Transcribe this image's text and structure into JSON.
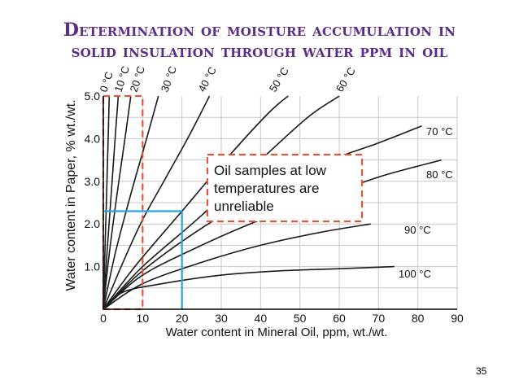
{
  "slide": {
    "title_line_1": "Determination of moisture accumulation in",
    "title_line_2": "solid insulation through water ppm in oil",
    "page_number": "35"
  },
  "colors": {
    "title": "#5b2c8a",
    "curves": "#1a1a1a",
    "reliability_box": "#e0563a",
    "example_lines": "#29a3dc",
    "background": "#ffffff"
  },
  "chart_data": {
    "type": "line",
    "xlabel": "Water content in Mineral Oil, ppm, wt./wt.",
    "ylabel": "Water content in Paper, % wt./wt.",
    "xlim": [
      0,
      90
    ],
    "ylim": [
      0,
      5.0
    ],
    "x_ticks": [
      0,
      10,
      20,
      30,
      40,
      50,
      60,
      70,
      80,
      90
    ],
    "x_tick_labels": [
      "0",
      "10",
      "20",
      "30",
      "40",
      "50",
      "60",
      "70",
      "80",
      "90"
    ],
    "y_ticks": [
      1.0,
      2.0,
      3.0,
      4.0,
      5.0
    ],
    "y_tick_labels": [
      "1.0",
      "2.0",
      "3.0",
      "4.0",
      "5.0"
    ],
    "grid": true,
    "series": [
      {
        "name": "0 °C",
        "x": [
          0,
          0.4,
          0.8,
          1.2,
          1.5
        ],
        "y": [
          0,
          1.3,
          2.6,
          3.9,
          5.0
        ]
      },
      {
        "name": "10 °C",
        "x": [
          0,
          1,
          2,
          3,
          3.8
        ],
        "y": [
          0,
          1.4,
          2.7,
          4.0,
          5.0
        ]
      },
      {
        "name": "20 °C",
        "x": [
          0,
          1.5,
          3.5,
          5.5,
          7.0
        ],
        "y": [
          0,
          1.3,
          2.7,
          4.0,
          5.0
        ]
      },
      {
        "name": "30 °C",
        "x": [
          0,
          3,
          7,
          11,
          14
        ],
        "y": [
          0,
          1.3,
          2.7,
          4.0,
          5.0
        ]
      },
      {
        "name": "40 °C",
        "x": [
          0,
          5,
          10,
          16,
          22,
          27
        ],
        "y": [
          0,
          1.1,
          2.1,
          3.1,
          4.1,
          5.0
        ]
      },
      {
        "name": "50 °C",
        "x": [
          0,
          8,
          20,
          32,
          42,
          47
        ],
        "y": [
          0,
          1.0,
          2.3,
          3.6,
          4.6,
          5.0
        ]
      },
      {
        "name": "60 °C",
        "x": [
          0,
          10,
          25,
          40,
          52,
          60
        ],
        "y": [
          0,
          1.0,
          2.2,
          3.5,
          4.5,
          5.0
        ]
      },
      {
        "name": "70 °C",
        "x": [
          0,
          10,
          25,
          40,
          55,
          70,
          81
        ],
        "y": [
          0,
          0.9,
          1.9,
          2.7,
          3.4,
          3.9,
          4.3
        ]
      },
      {
        "name": "80 °C",
        "x": [
          0,
          10,
          25,
          40,
          55,
          70,
          86
        ],
        "y": [
          0,
          0.8,
          1.5,
          2.1,
          2.6,
          3.1,
          3.5
        ]
      },
      {
        "name": "90 °C",
        "x": [
          0,
          10,
          25,
          40,
          55,
          68
        ],
        "y": [
          0,
          0.6,
          1.1,
          1.5,
          1.8,
          2.0
        ]
      },
      {
        "name": "100 °C",
        "x": [
          0,
          5,
          15,
          30,
          45,
          60,
          74
        ],
        "y": [
          0,
          0.4,
          0.6,
          0.8,
          0.9,
          0.95,
          1.0
        ]
      }
    ],
    "curve_labels": [
      {
        "text": "0 °C",
        "series": "0 °C"
      },
      {
        "text": "10 °C",
        "series": "10 °C"
      },
      {
        "text": "20 °C",
        "series": "20 °C"
      },
      {
        "text": "30 °C",
        "series": "30 °C"
      },
      {
        "text": "40 °C",
        "series": "40 °C"
      },
      {
        "text": "50 °C",
        "series": "50 °C"
      },
      {
        "text": "60 °C",
        "series": "60 °C"
      },
      {
        "text": "70 °C",
        "series": "70 °C"
      },
      {
        "text": "80 °C",
        "series": "80 °C"
      },
      {
        "text": "90 °C",
        "series": "90 °C"
      },
      {
        "text": "100 °C",
        "series": "100 °C"
      }
    ],
    "annotations": {
      "unreliable_region": {
        "x": [
          0,
          10
        ],
        "y": [
          0,
          5.0
        ]
      },
      "note_lines": [
        "Oil samples at low",
        "temperatures are",
        "unreliable"
      ],
      "example_reading": {
        "x": 20,
        "y": 2.3
      }
    }
  }
}
